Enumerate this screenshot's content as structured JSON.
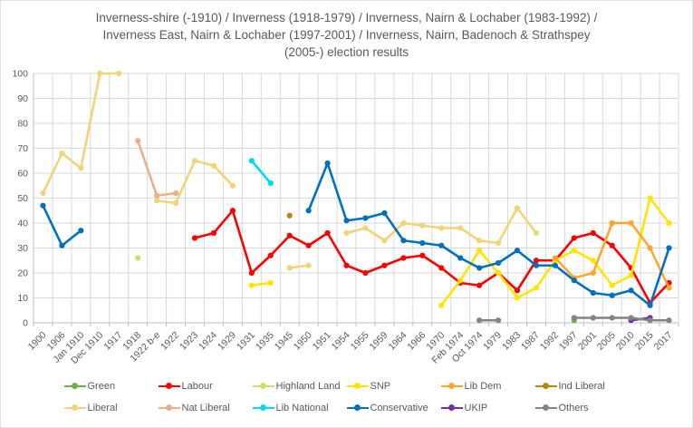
{
  "title": {
    "lines": [
      "Inverness-shire (-1910) / Inverness (1918-1979) / Inverness, Nairn & Lochaber (1983-1992) /",
      "Inverness East, Nairn & Lochaber (1997-2001) / Inverness, Nairn, Badenoch & Strathspey",
      "(2005-) election results"
    ]
  },
  "chart_data": {
    "type": "line",
    "title": "Inverness-shire (-1910) / Inverness (1918-1979) / Inverness, Nairn & Lochaber (1983-1992) / Inverness East, Nairn & Lochaber (1997-2001) / Inverness, Nairn, Badenoch & Strathspey (2005-) election results",
    "xlabel": "",
    "ylabel": "",
    "ylim": [
      0,
      100
    ],
    "ytick_step": 10,
    "grid": true,
    "legend_position": "bottom",
    "axis_text_color": "#595959",
    "grid_color": "#d9d9d9",
    "axis_line_color": "#bfbfbf",
    "categories": [
      "1900",
      "1906",
      "Jan 1910",
      "Dec 1910",
      "1917",
      "1918",
      "1922 b-e",
      "1922",
      "1923",
      "1924",
      "1929",
      "1931",
      "1935",
      "1945",
      "1950",
      "1951",
      "1954",
      "1955",
      "1959",
      "1964",
      "1966",
      "1970",
      "Feb 1974",
      "Oct 1974",
      "1979",
      "1983",
      "1987",
      "1992",
      "1997",
      "2001",
      "2005",
      "2010",
      "2015",
      "2017"
    ],
    "series": [
      {
        "name": "Green",
        "color": "#70ad47",
        "values": [
          null,
          null,
          null,
          null,
          null,
          null,
          null,
          null,
          null,
          null,
          null,
          null,
          null,
          null,
          null,
          null,
          null,
          null,
          null,
          null,
          null,
          null,
          null,
          null,
          null,
          null,
          null,
          null,
          1,
          null,
          null,
          null,
          null,
          null
        ]
      },
      {
        "name": "Labour",
        "color": "#ff0000",
        "values": [
          null,
          null,
          null,
          null,
          null,
          null,
          null,
          null,
          34,
          36,
          45,
          20,
          27,
          35,
          31,
          36,
          23,
          20,
          23,
          26,
          27,
          22,
          16,
          15,
          20,
          13,
          25,
          25,
          34,
          36,
          31,
          22,
          8,
          16
        ]
      },
      {
        "name": "Highland Land",
        "color": "#c9e265",
        "values": [
          null,
          null,
          null,
          null,
          null,
          26,
          null,
          null,
          null,
          null,
          null,
          null,
          null,
          null,
          null,
          null,
          null,
          null,
          null,
          null,
          null,
          null,
          null,
          null,
          null,
          null,
          null,
          null,
          null,
          null,
          null,
          null,
          null,
          null
        ]
      },
      {
        "name": "SNP",
        "color": "#ffe500",
        "values": [
          null,
          null,
          null,
          null,
          null,
          null,
          null,
          null,
          null,
          null,
          null,
          15,
          16,
          null,
          null,
          null,
          null,
          null,
          null,
          null,
          null,
          7,
          17,
          29,
          20,
          10,
          14,
          25,
          29,
          25,
          15,
          19,
          50,
          40
        ]
      },
      {
        "name": "Lib Dem",
        "color": "#ffa72b",
        "values": [
          null,
          null,
          null,
          null,
          null,
          null,
          null,
          null,
          null,
          null,
          null,
          null,
          null,
          null,
          null,
          null,
          null,
          null,
          null,
          null,
          null,
          null,
          null,
          null,
          null,
          null,
          null,
          26,
          18,
          20,
          40,
          40,
          30,
          14
        ]
      },
      {
        "name": "Ind Liberal",
        "color": "#b08c00",
        "values": [
          null,
          null,
          null,
          null,
          null,
          null,
          null,
          null,
          null,
          null,
          null,
          null,
          null,
          43,
          null,
          null,
          null,
          null,
          null,
          null,
          null,
          null,
          null,
          null,
          null,
          null,
          null,
          null,
          null,
          null,
          null,
          null,
          null,
          null
        ]
      },
      {
        "name": "Liberal",
        "color": "#f2d478",
        "values": [
          52,
          68,
          62,
          100,
          100,
          null,
          49,
          48,
          65,
          63,
          55,
          null,
          null,
          22,
          23,
          null,
          36,
          38,
          33,
          40,
          39,
          38,
          38,
          33,
          32,
          46,
          36,
          null,
          null,
          null,
          null,
          null,
          null,
          null
        ]
      },
      {
        "name": "Nat Liberal",
        "color": "#efae8b",
        "values": [
          null,
          null,
          null,
          null,
          null,
          73,
          51,
          52,
          null,
          null,
          null,
          null,
          null,
          null,
          null,
          null,
          null,
          null,
          null,
          null,
          null,
          null,
          null,
          null,
          null,
          null,
          null,
          null,
          null,
          null,
          null,
          null,
          null,
          null
        ]
      },
      {
        "name": "Lib National",
        "color": "#00d9f2",
        "values": [
          null,
          null,
          null,
          null,
          null,
          null,
          null,
          null,
          null,
          null,
          null,
          65,
          56,
          null,
          null,
          null,
          null,
          null,
          null,
          null,
          null,
          null,
          null,
          null,
          null,
          null,
          null,
          null,
          null,
          null,
          null,
          null,
          null,
          null
        ]
      },
      {
        "name": "Conservative",
        "color": "#0070c0",
        "values": [
          47,
          31,
          37,
          null,
          null,
          null,
          null,
          null,
          null,
          null,
          null,
          null,
          null,
          null,
          45,
          64,
          41,
          42,
          44,
          33,
          32,
          31,
          26,
          22,
          24,
          29,
          23,
          23,
          17,
          12,
          11,
          13,
          7,
          30
        ]
      },
      {
        "name": "UKIP",
        "color": "#7030a0",
        "values": [
          null,
          null,
          null,
          null,
          null,
          null,
          null,
          null,
          null,
          null,
          null,
          null,
          null,
          null,
          null,
          null,
          null,
          null,
          null,
          null,
          null,
          null,
          null,
          null,
          null,
          null,
          null,
          null,
          null,
          null,
          null,
          1,
          2,
          null
        ]
      },
      {
        "name": "Others",
        "color": "#848484",
        "values": [
          null,
          null,
          null,
          null,
          null,
          null,
          null,
          null,
          null,
          null,
          null,
          null,
          null,
          null,
          null,
          null,
          null,
          null,
          null,
          null,
          null,
          null,
          null,
          1,
          1,
          null,
          null,
          null,
          2,
          2,
          2,
          2,
          1,
          1
        ]
      }
    ]
  }
}
